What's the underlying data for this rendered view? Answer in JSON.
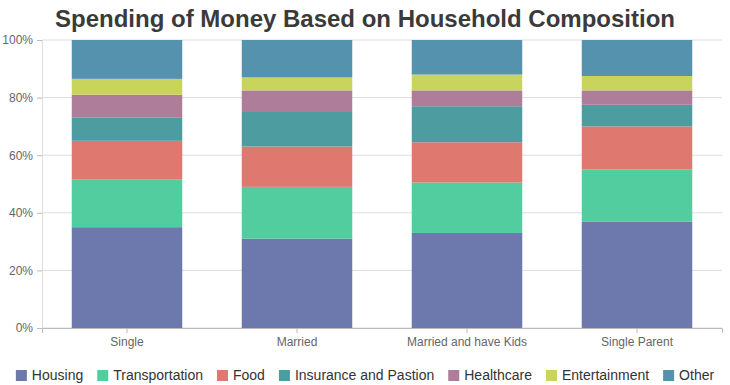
{
  "chart_data": {
    "type": "bar",
    "title": "Spending of Money Based on Household Composition",
    "categories": [
      "Single",
      "Married",
      "Married and have Kids",
      "Single Parent"
    ],
    "series": [
      {
        "name": "Housing",
        "color": "#6D78AD",
        "values": [
          35,
          31,
          33,
          37
        ]
      },
      {
        "name": "Transportation",
        "color": "#51CDA0",
        "values": [
          16.5,
          18,
          17.5,
          18
        ]
      },
      {
        "name": "Food",
        "color": "#DF7970",
        "values": [
          13.5,
          14,
          14,
          15
        ]
      },
      {
        "name": "Insurance and Pastion",
        "color": "#4C9CA0",
        "values": [
          8,
          12,
          12.5,
          7.5
        ]
      },
      {
        "name": "Healthcare",
        "color": "#AE7D99",
        "values": [
          8,
          7.5,
          5.5,
          5
        ]
      },
      {
        "name": "Entertainment",
        "color": "#C9D45C",
        "values": [
          5.5,
          4.5,
          5.5,
          5
        ]
      },
      {
        "name": "Other",
        "color": "#5592AD",
        "values": [
          13.5,
          13,
          12,
          12.5
        ]
      }
    ],
    "ylim": [
      0,
      100
    ],
    "yticks": [
      {
        "value": 0,
        "label": "0%"
      },
      {
        "value": 20,
        "label": "20%"
      },
      {
        "value": 40,
        "label": "40%"
      },
      {
        "value": 60,
        "label": "60%"
      },
      {
        "value": 80,
        "label": "80%"
      },
      {
        "value": 100,
        "label": "100%"
      }
    ],
    "stacked": true,
    "grid": true,
    "legend": "bottom"
  }
}
